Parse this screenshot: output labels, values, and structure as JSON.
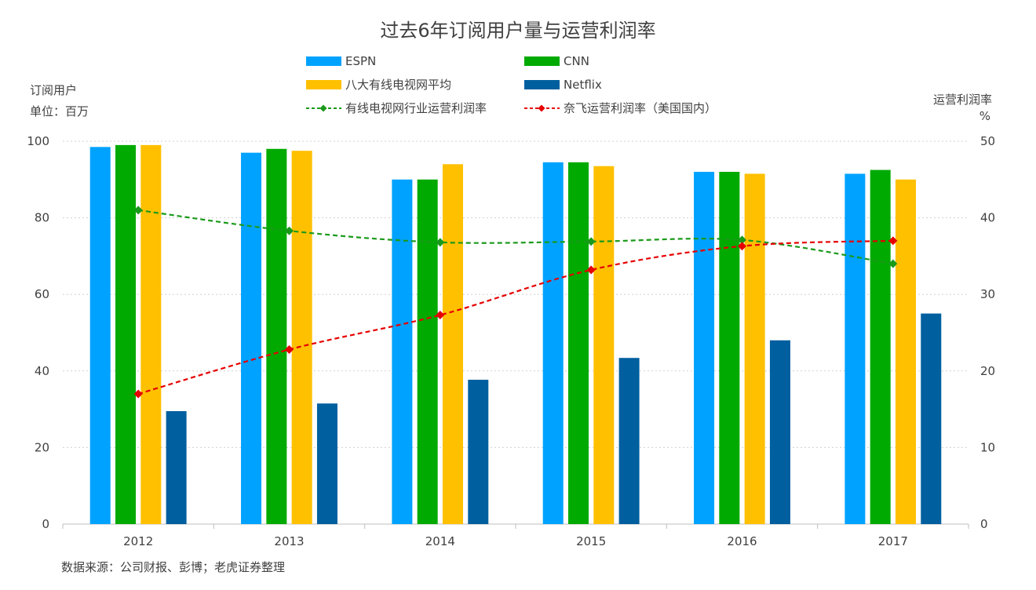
{
  "chart_data": {
    "type": "bar",
    "title": "过去6年订阅用户量与运营利润率",
    "categories": [
      "2012",
      "2013",
      "2014",
      "2015",
      "2016",
      "2017"
    ],
    "y_left": {
      "label_line1": "订阅用户",
      "label_line2": "单位：百万",
      "ticks": [
        "0",
        "20",
        "40",
        "60",
        "80",
        "100"
      ],
      "ylim": [
        0,
        100
      ]
    },
    "y_right": {
      "label_line1": "运营利润率",
      "label_line2": "%",
      "ticks": [
        "0",
        "10",
        "20",
        "30",
        "40",
        "50"
      ],
      "ylim": [
        0,
        50
      ]
    },
    "bar_series": [
      {
        "name": "ESPN",
        "color": "#00A2FF",
        "values": [
          98.5,
          97,
          90,
          94.5,
          92,
          91.5
        ]
      },
      {
        "name": "CNN",
        "color": "#00AA00",
        "values": [
          99,
          98,
          90,
          94.5,
          92,
          92.5
        ]
      },
      {
        "name": "八大有线电视网平均",
        "color": "#FFC000",
        "values": [
          99,
          97.5,
          94,
          93.5,
          91.5,
          90
        ]
      },
      {
        "name": "Netflix",
        "color": "#005F9E",
        "values": [
          29.5,
          31.5,
          37.7,
          43.4,
          48,
          55
        ]
      }
    ],
    "line_series": [
      {
        "name": "有线电视网行业运营利润率",
        "color": "#1A9A1A",
        "axis": "right",
        "values": [
          41,
          38.3,
          36.8,
          36.9,
          37.1,
          34
        ]
      },
      {
        "name": "奈飞运营利润率（美国国内）",
        "color": "#E60000",
        "axis": "right",
        "values": [
          17,
          22.8,
          27.3,
          33.2,
          36.3,
          37
        ]
      }
    ],
    "grid": true,
    "legend_position": "top"
  },
  "source": "数据来源：公司财报、彭博；老虎证券整理"
}
